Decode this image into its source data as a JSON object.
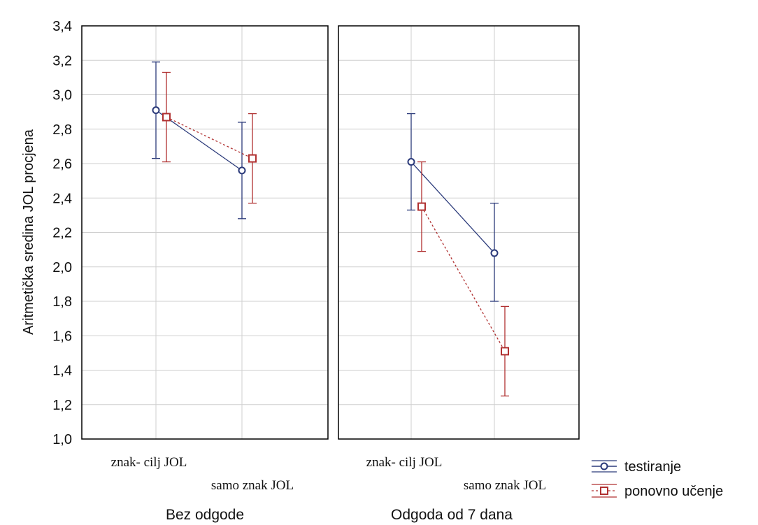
{
  "chart_data": {
    "type": "line",
    "ylabel": "Aritmetička sredina JOL procjena",
    "ylim": [
      1.0,
      3.4
    ],
    "yticks": [
      "1,0",
      "1,2",
      "1,4",
      "1,6",
      "1,8",
      "2,0",
      "2,2",
      "2,4",
      "2,6",
      "2,8",
      "3,0",
      "3,2",
      "3,4"
    ],
    "grid": true,
    "legend_position": "bottom-right",
    "categories": [
      "znak- cilj JOL",
      "samo znak JOL"
    ],
    "colors": {
      "testiranje": "#2b3a7a",
      "ponovno_ucenje": "#b03030",
      "grid": "#cfcfcf"
    },
    "panels": [
      {
        "title": "Bez odgode",
        "series": [
          {
            "name": "testiranje",
            "marker": "circle",
            "values": [
              2.91,
              2.56
            ],
            "ci_low": [
              2.63,
              2.28
            ],
            "ci_high": [
              3.19,
              2.84
            ]
          },
          {
            "name": "ponovno učenje",
            "marker": "square",
            "values": [
              2.87,
              2.63
            ],
            "ci_low": [
              2.61,
              2.37
            ],
            "ci_high": [
              3.13,
              2.89
            ]
          }
        ]
      },
      {
        "title": "Odgoda od 7 dana",
        "series": [
          {
            "name": "testiranje",
            "marker": "circle",
            "values": [
              2.61,
              2.08
            ],
            "ci_low": [
              2.33,
              1.8
            ],
            "ci_high": [
              2.89,
              2.37
            ]
          },
          {
            "name": "ponovno učenje",
            "marker": "square",
            "values": [
              2.35,
              1.51
            ],
            "ci_low": [
              2.09,
              1.25
            ],
            "ci_high": [
              2.61,
              1.77
            ]
          }
        ]
      }
    ]
  }
}
